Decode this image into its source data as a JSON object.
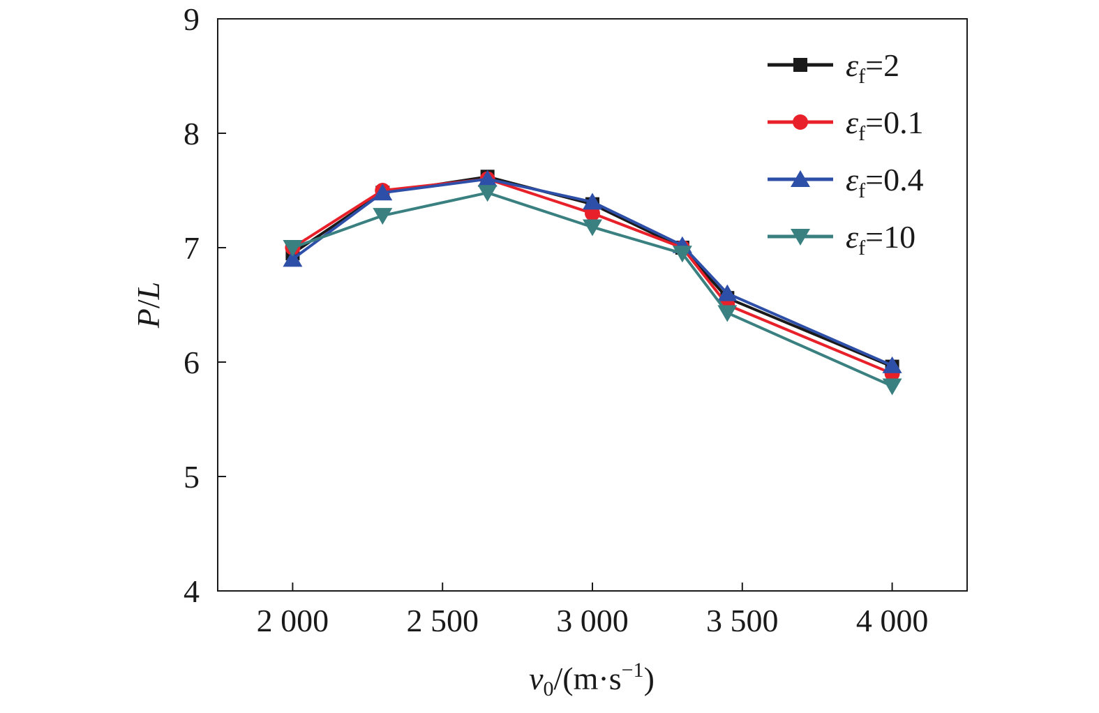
{
  "chart_data": {
    "type": "line",
    "xlabel": {
      "base": "v",
      "base_sub": "0",
      "rest": "/(m·s",
      "sup": "−1",
      "close": ")"
    },
    "ylabel": {
      "part1": "P",
      "slash": "/",
      "part2": "L"
    },
    "xlim": [
      1750,
      4250
    ],
    "ylim": [
      4,
      9
    ],
    "x_ticks": [
      2000,
      2500,
      3000,
      3500,
      4000
    ],
    "x_tick_labels": [
      "2 000",
      "2 500",
      "3 000",
      "3 500",
      "4 000"
    ],
    "y_ticks": [
      4,
      5,
      6,
      7,
      8,
      9
    ],
    "y_tick_labels": [
      "4",
      "5",
      "6",
      "7",
      "8",
      "9"
    ],
    "grid": false,
    "legend_position": "top-right",
    "x": [
      2000,
      2300,
      2650,
      3000,
      3300,
      3450,
      4000
    ],
    "series": [
      {
        "name": "ε_f=2",
        "legend_symbol": "ε",
        "legend_sub": "f",
        "legend_value": "=2",
        "color": "#1a1a1a",
        "marker": "square",
        "values": [
          6.95,
          7.48,
          7.62,
          7.38,
          7.0,
          6.56,
          5.96
        ]
      },
      {
        "name": "ε_f=0.1",
        "legend_symbol": "ε",
        "legend_sub": "f",
        "legend_value": "=0.1",
        "color": "#e8202a",
        "marker": "circle",
        "values": [
          7.0,
          7.5,
          7.6,
          7.3,
          7.0,
          6.5,
          5.9
        ]
      },
      {
        "name": "ε_f=0.4",
        "legend_symbol": "ε",
        "legend_sub": "f",
        "legend_value": "=0.4",
        "color": "#2e4fa8",
        "marker": "triangle-up",
        "values": [
          6.9,
          7.48,
          7.6,
          7.4,
          7.02,
          6.6,
          5.97
        ]
      },
      {
        "name": "ε_f=10",
        "legend_symbol": "ε",
        "legend_sub": "f",
        "legend_value": "=10",
        "color": "#3a8080",
        "marker": "triangle-down",
        "values": [
          7.0,
          7.28,
          7.48,
          7.18,
          6.95,
          6.43,
          5.79
        ]
      }
    ]
  }
}
